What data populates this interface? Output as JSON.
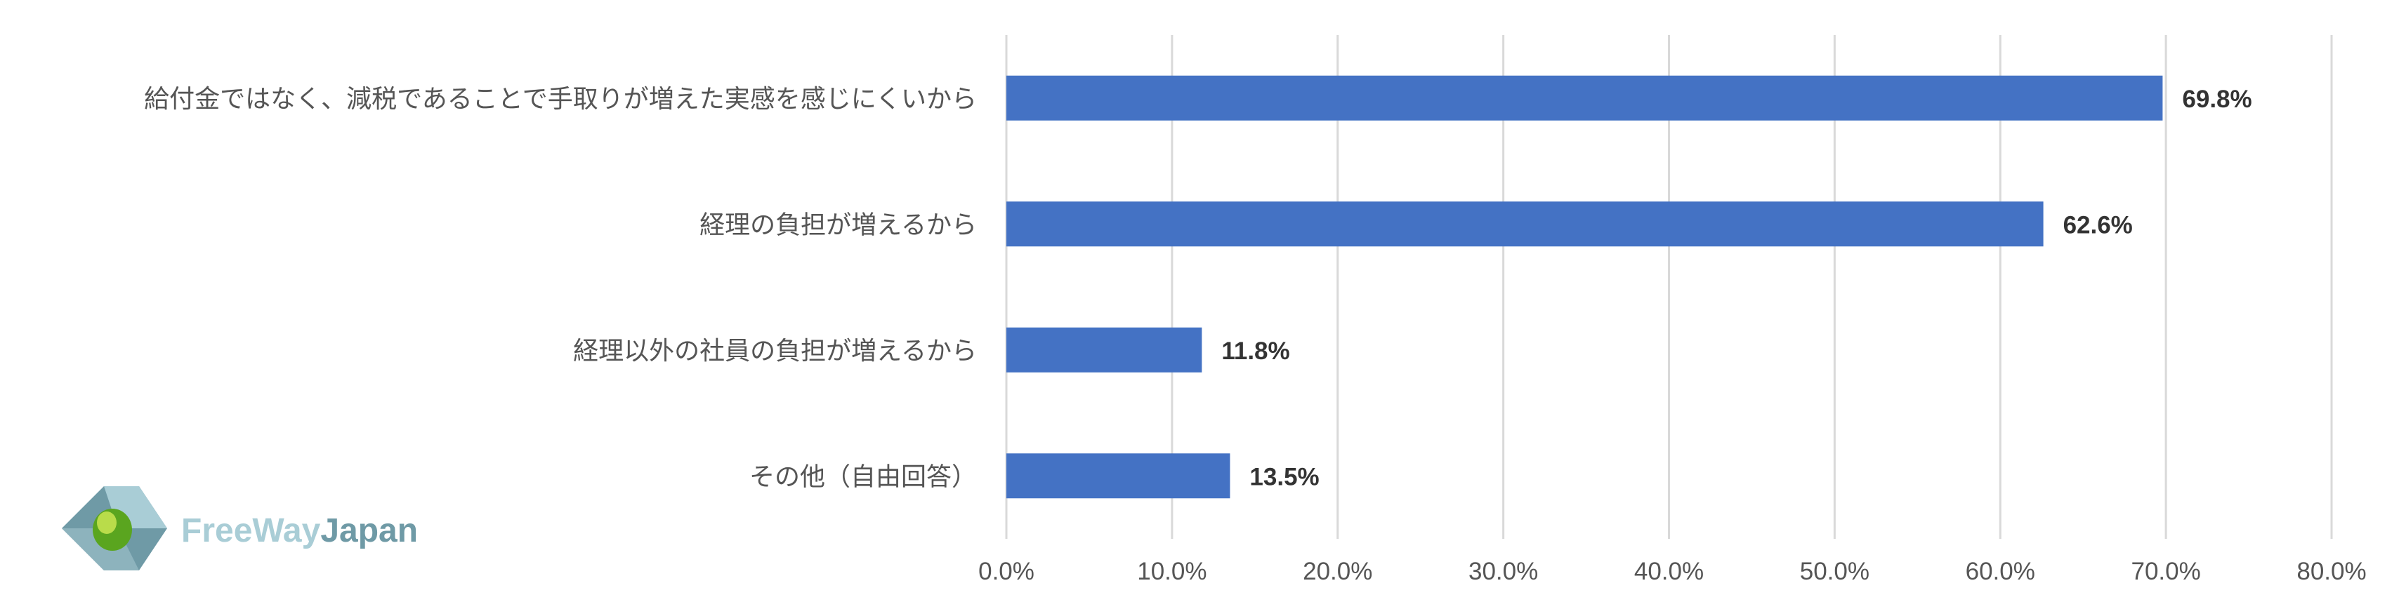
{
  "logo": {
    "text_a": "FreeWay",
    "text_b": "Japan"
  },
  "chart_data": {
    "type": "bar",
    "orientation": "horizontal",
    "categories": [
      "給付金ではなく、減税であることで手取りが増えた実感を感じにくいから",
      "経理の負担が増えるから",
      "経理以外の社員の負担が増えるから",
      "その他（自由回答）"
    ],
    "values": [
      69.8,
      62.6,
      11.8,
      13.5
    ],
    "value_labels": [
      "69.8%",
      "62.6%",
      "11.8%",
      "13.5%"
    ],
    "xlim": [
      0,
      80
    ],
    "xticks": [
      "0.0%",
      "10.0%",
      "20.0%",
      "30.0%",
      "40.0%",
      "50.0%",
      "60.0%",
      "70.0%",
      "80.0%"
    ],
    "bar_color": "#4472c4",
    "grid": true,
    "legend": false
  }
}
